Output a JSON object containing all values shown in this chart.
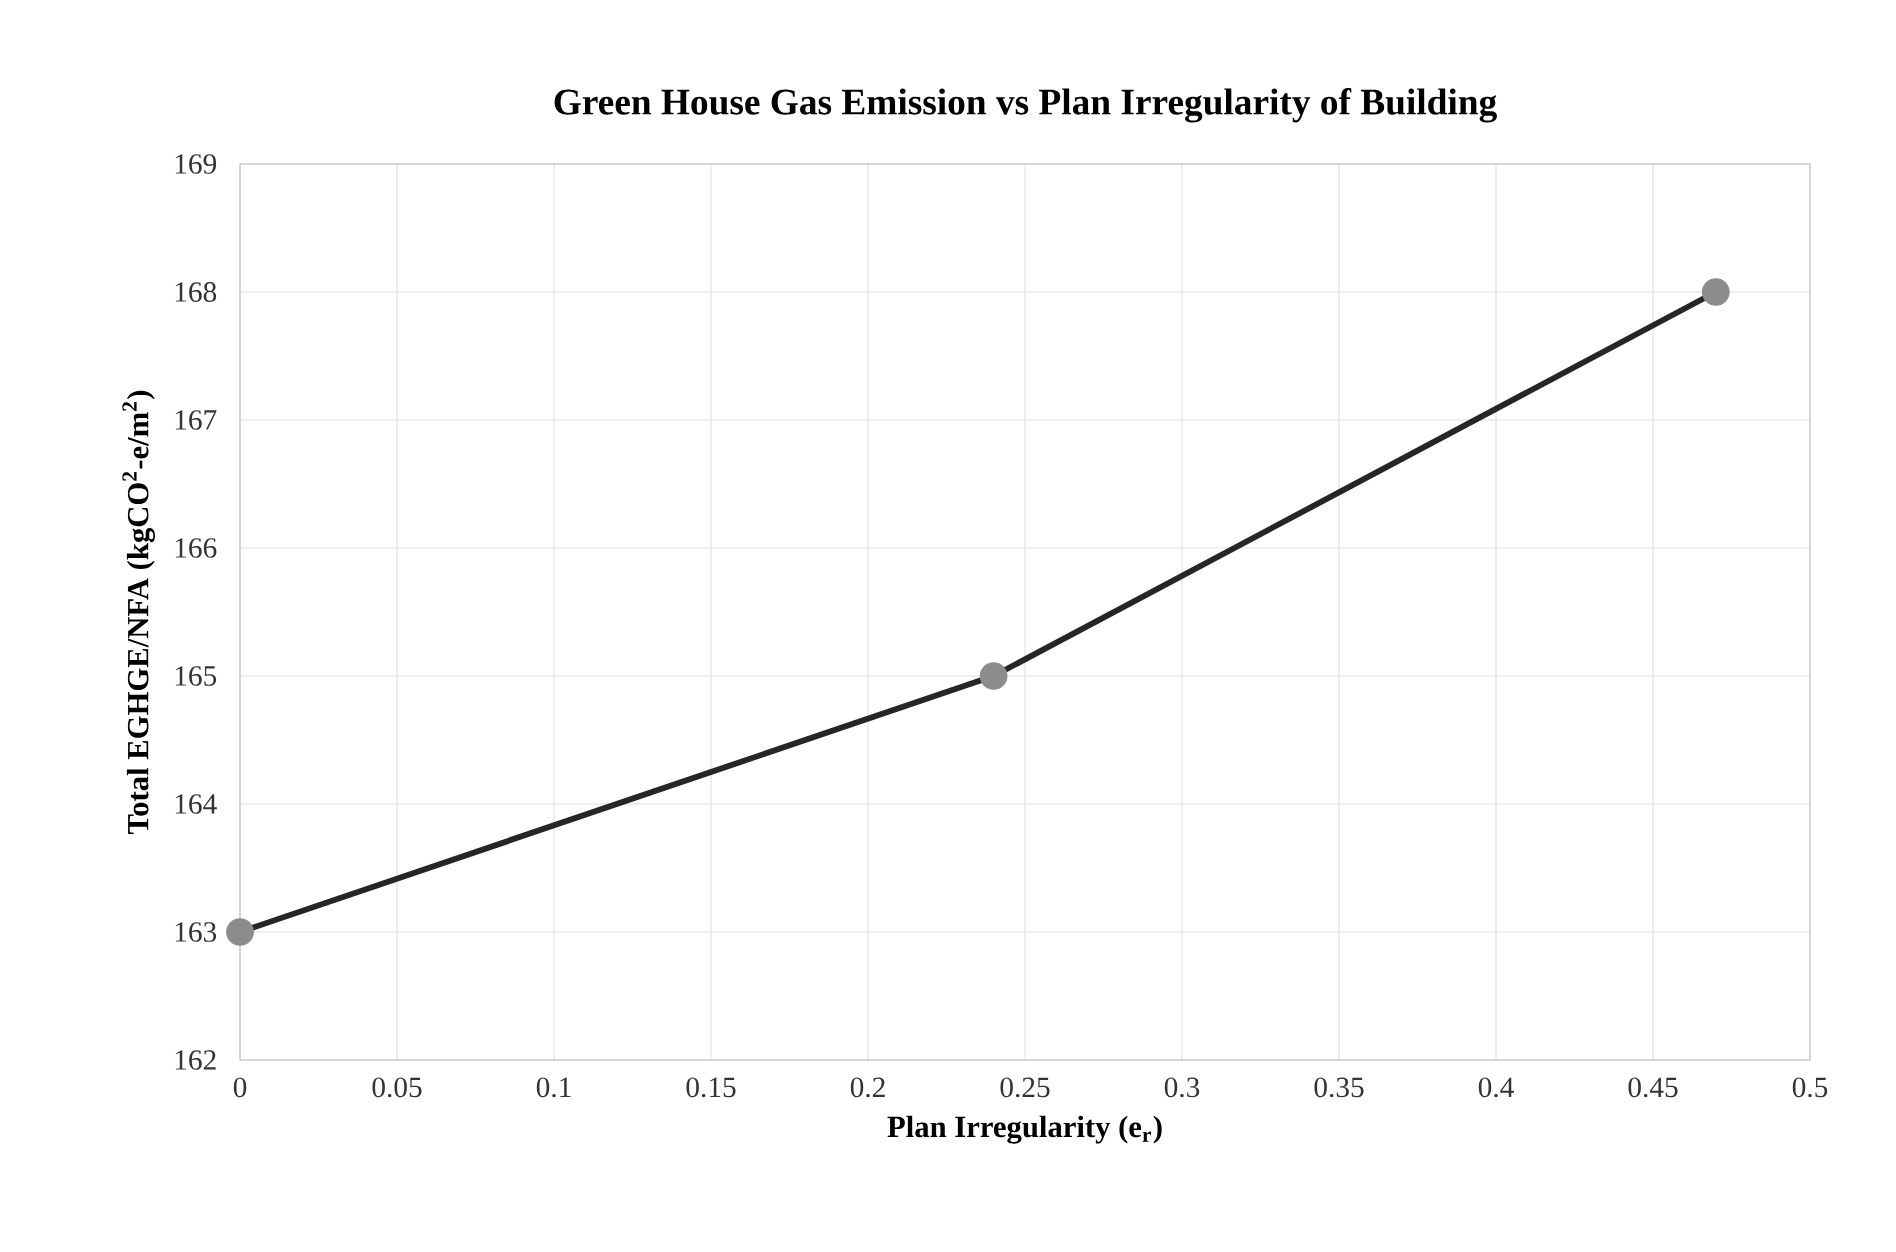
{
  "chart_data": {
    "type": "line",
    "title": "Green House Gas Emission vs Plan Irregularity of Building",
    "xlabel": "Plan Irregularity (e$_{r}$)",
    "ylabel": "Total EGHGE/NFA (kgCO$^{2}$-e/m$^{2}$)",
    "x": [
      0,
      0.24,
      0.47
    ],
    "series": [
      {
        "color": "#262626",
        "colors": [
          "#8c8c8c",
          "#8c8c8c",
          "#8c8c8c"
        ],
        "values": [
          163,
          165,
          168
        ]
      }
    ],
    "marker": "circle",
    "line_style": "solid",
    "xlim": [
      0,
      0.5
    ],
    "xticks": [
      0,
      0.05,
      0.1,
      0.15,
      0.2,
      0.25,
      0.3,
      0.35,
      0.4,
      0.45,
      0.5
    ],
    "ylim": [
      162,
      169
    ],
    "yticks": [
      162,
      163,
      164,
      165,
      166,
      167,
      168,
      169
    ],
    "grid": true
  }
}
